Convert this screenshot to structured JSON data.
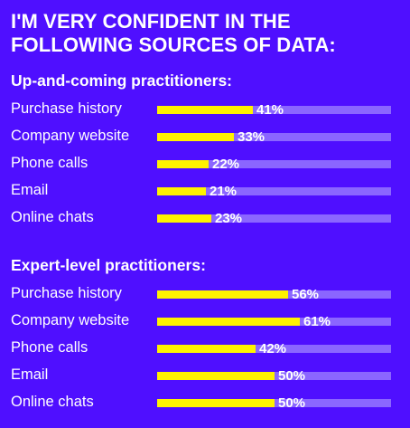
{
  "title_lines": [
    "I'M VERY CONFIDENT IN THE",
    "FOLLOWING SOURCES OF DATA:"
  ],
  "colors": {
    "background": "#4f0fff",
    "bar_fill": "#fff200",
    "bar_track": "#8b66ff",
    "text": "#ffffff"
  },
  "chart_data": [
    {
      "type": "bar",
      "title": "Up-and-coming practitioners:",
      "categories": [
        "Purchase history",
        "Company website",
        "Phone calls",
        "Email",
        "Online chats"
      ],
      "values": [
        41,
        33,
        22,
        21,
        23
      ],
      "value_labels": [
        "41%",
        "33%",
        "22%",
        "21%",
        "23%"
      ],
      "ylim": [
        0,
        100
      ],
      "grid": false
    },
    {
      "type": "bar",
      "title": "Expert-level practitioners:",
      "categories": [
        "Purchase history",
        "Company website",
        "Phone calls",
        "Email",
        "Online chats"
      ],
      "values": [
        56,
        61,
        42,
        50,
        50
      ],
      "value_labels": [
        "56%",
        "61%",
        "42%",
        "50%",
        "50%"
      ],
      "ylim": [
        0,
        100
      ],
      "grid": false
    }
  ]
}
